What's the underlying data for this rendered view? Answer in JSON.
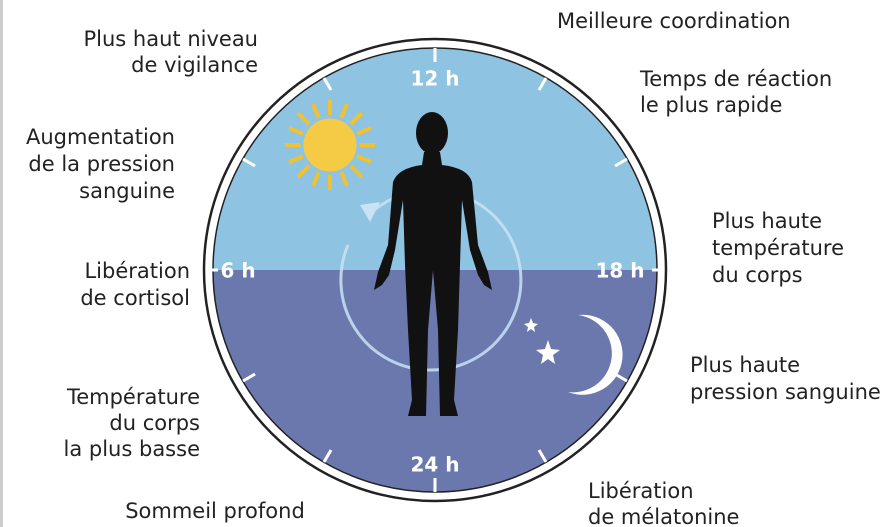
{
  "clock": {
    "hours": [
      "12 h",
      "6 h",
      "18 h",
      "24 h"
    ]
  },
  "labels": [
    {
      "lines": [
        "Plus haut niveau",
        "de vigilance"
      ]
    },
    {
      "lines": [
        "Meilleure coordination"
      ]
    },
    {
      "lines": [
        "Temps de réaction",
        "le plus rapide"
      ]
    },
    {
      "lines": [
        "Augmentation",
        "de la pression",
        "sanguine"
      ]
    },
    {
      "lines": [
        "Plus haute",
        "température",
        "du corps"
      ]
    },
    {
      "lines": [
        "Libération",
        "de cortisol"
      ]
    },
    {
      "lines": [
        "Plus haute",
        "pression sanguine"
      ]
    },
    {
      "lines": [
        "Température",
        "du corps",
        "la plus basse"
      ]
    },
    {
      "lines": [
        "Sommeil profond"
      ]
    },
    {
      "lines": [
        "Libération",
        "de mélatonine"
      ]
    }
  ]
}
